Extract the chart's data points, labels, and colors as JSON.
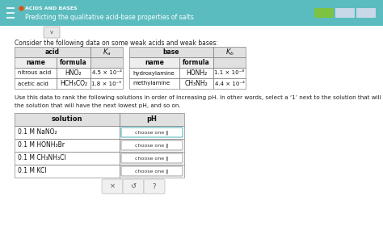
{
  "header_bg": "#5bbcbf",
  "body_bg": "#ffffff",
  "outer_bg": "#f0f0f0",
  "title_small": "ACIDS AND BASES",
  "title_main": "Predicting the qualitative acid-base properties of salts",
  "intro_text": "Consider the following data on some weak acids and weak bases:",
  "ranking_text1": "Use this data to rank the following solutions in order of increasing pH. In other words, select a ‘1’ next to the solution that will have the lowest pH,",
  "ranking_text2": "the solution that will have the next lowest pH, and so on.",
  "acid_rows": [
    [
      "nitrous acid",
      "HNO₂",
      "4.5 × 10⁻⁴"
    ],
    [
      "acetic acid",
      "HCH₃CO₂",
      "1.8 × 10⁻⁵"
    ]
  ],
  "base_rows": [
    [
      "hydroxylamine",
      "HONH₂",
      "1.1 × 10⁻⁸"
    ],
    [
      "methylamine",
      "CH₃NH₂",
      "4.4 × 10⁻⁴"
    ]
  ],
  "solution_rows": [
    "0.1 M NaNO₂",
    "0.1 M HONH₃Br",
    "0.1 M CH₃NH₃Cl",
    "0.1 M KCl"
  ],
  "progress_colors": [
    "#7dc242",
    "#c8d8e8",
    "#c8d8e8"
  ],
  "choose_text": "choose one ‖",
  "bottom_symbols": [
    "×",
    "↺",
    "?"
  ]
}
